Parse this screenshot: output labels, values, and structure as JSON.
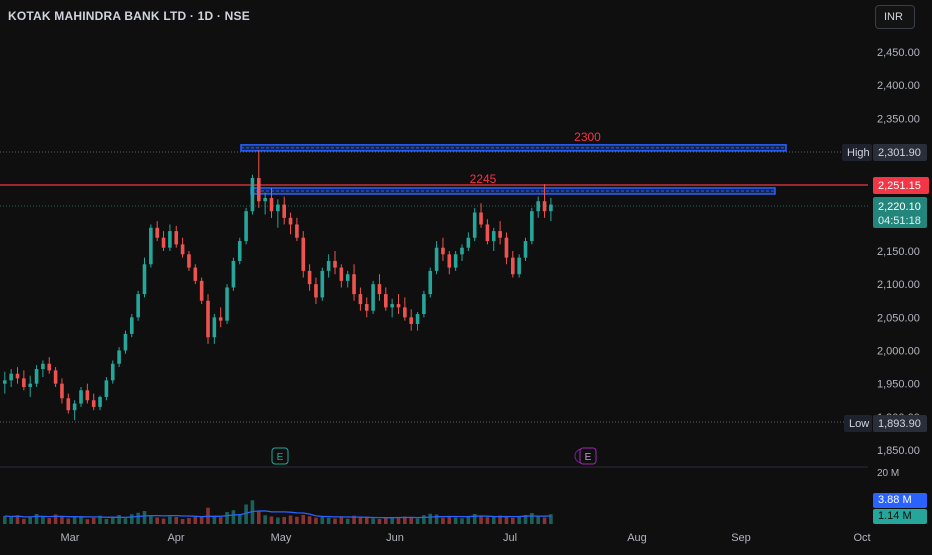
{
  "header": {
    "title": "KOTAK MAHINDRA BANK LTD · 1D · NSE",
    "currency": "INR"
  },
  "colors": {
    "up": "#26a69a",
    "down": "#ef5350",
    "zone": "#2962ff",
    "price_line": "#f23645",
    "ma": "#2962ff"
  },
  "y_axis": {
    "ticks": [
      "2,450.00",
      "2,400.00",
      "2,350.00",
      "2,300.00",
      "2,250.00",
      "2,200.00",
      "2,150.00",
      "2,100.00",
      "2,050.00",
      "2,000.00",
      "1,950.00",
      "1,900.00",
      "1,850.00"
    ],
    "range": [
      1830,
      2480
    ]
  },
  "x_axis": {
    "labels": [
      "Mar",
      "Apr",
      "May",
      "Jun",
      "Jul",
      "Aug",
      "Sep",
      "Oct"
    ]
  },
  "price_tags": {
    "high_label": "High",
    "high_value": "2,301.90",
    "current_value": "2,251.15",
    "last_value": "2,220.10",
    "countdown": "04:51:18",
    "low_label": "Low",
    "low_value": "1,893.90"
  },
  "zones": [
    {
      "label": "2300",
      "low": 2301,
      "high": 2310
    },
    {
      "label": "2245",
      "low": 2236,
      "high": 2245
    }
  ],
  "event_markers": [
    "E",
    "E"
  ],
  "volume": {
    "top_label": "20 M",
    "tag1": "3.88 M",
    "tag2": "1.14 M"
  },
  "chart_data": {
    "type": "candlestick",
    "title": "KOTAK MAHINDRA BANK LTD · 1D · NSE",
    "x_labels": [
      "Mar",
      "Apr",
      "May",
      "Jun",
      "Jul",
      "Aug",
      "Sep",
      "Oct"
    ],
    "ylim": [
      1830,
      2480
    ],
    "ohlc": [
      [
        1950,
        1968,
        1935,
        1955
      ],
      [
        1955,
        1972,
        1945,
        1965
      ],
      [
        1965,
        1975,
        1950,
        1958
      ],
      [
        1958,
        1970,
        1940,
        1945
      ],
      [
        1945,
        1962,
        1930,
        1950
      ],
      [
        1950,
        1978,
        1945,
        1972
      ],
      [
        1972,
        1985,
        1960,
        1980
      ],
      [
        1980,
        1990,
        1965,
        1970
      ],
      [
        1970,
        1975,
        1945,
        1950
      ],
      [
        1950,
        1958,
        1920,
        1928
      ],
      [
        1928,
        1935,
        1905,
        1910
      ],
      [
        1910,
        1925,
        1895,
        1920
      ],
      [
        1920,
        1945,
        1915,
        1940
      ],
      [
        1940,
        1950,
        1920,
        1925
      ],
      [
        1925,
        1935,
        1910,
        1915
      ],
      [
        1915,
        1932,
        1910,
        1930
      ],
      [
        1930,
        1960,
        1925,
        1955
      ],
      [
        1955,
        1985,
        1950,
        1980
      ],
      [
        1980,
        2005,
        1975,
        2000
      ],
      [
        2000,
        2030,
        1995,
        2025
      ],
      [
        2025,
        2055,
        2020,
        2050
      ],
      [
        2050,
        2090,
        2045,
        2085
      ],
      [
        2085,
        2140,
        2080,
        2130
      ],
      [
        2130,
        2190,
        2125,
        2185
      ],
      [
        2185,
        2195,
        2165,
        2170
      ],
      [
        2170,
        2180,
        2150,
        2155
      ],
      [
        2155,
        2190,
        2150,
        2180
      ],
      [
        2180,
        2188,
        2155,
        2160
      ],
      [
        2160,
        2170,
        2140,
        2145
      ],
      [
        2145,
        2150,
        2120,
        2125
      ],
      [
        2125,
        2130,
        2100,
        2105
      ],
      [
        2105,
        2110,
        2070,
        2075
      ],
      [
        2075,
        2085,
        2010,
        2020
      ],
      [
        2020,
        2055,
        2010,
        2050
      ],
      [
        2050,
        2065,
        2035,
        2045
      ],
      [
        2045,
        2100,
        2040,
        2095
      ],
      [
        2095,
        2140,
        2090,
        2135
      ],
      [
        2135,
        2170,
        2130,
        2165
      ],
      [
        2165,
        2215,
        2160,
        2210
      ],
      [
        2210,
        2265,
        2205,
        2260
      ],
      [
        2260,
        2302,
        2215,
        2225
      ],
      [
        2225,
        2238,
        2205,
        2230
      ],
      [
        2230,
        2245,
        2200,
        2210
      ],
      [
        2210,
        2228,
        2185,
        2220
      ],
      [
        2220,
        2232,
        2190,
        2200
      ],
      [
        2200,
        2208,
        2175,
        2190
      ],
      [
        2190,
        2200,
        2165,
        2170
      ],
      [
        2170,
        2180,
        2110,
        2120
      ],
      [
        2120,
        2130,
        2090,
        2100
      ],
      [
        2100,
        2110,
        2070,
        2080
      ],
      [
        2080,
        2125,
        2075,
        2120
      ],
      [
        2120,
        2145,
        2110,
        2135
      ],
      [
        2135,
        2150,
        2115,
        2125
      ],
      [
        2125,
        2130,
        2095,
        2105
      ],
      [
        2105,
        2120,
        2095,
        2115
      ],
      [
        2115,
        2130,
        2075,
        2085
      ],
      [
        2085,
        2095,
        2060,
        2070
      ],
      [
        2070,
        2080,
        2050,
        2060
      ],
      [
        2060,
        2105,
        2055,
        2100
      ],
      [
        2100,
        2115,
        2075,
        2085
      ],
      [
        2085,
        2095,
        2060,
        2065
      ],
      [
        2065,
        2078,
        2050,
        2070
      ],
      [
        2070,
        2085,
        2055,
        2065
      ],
      [
        2065,
        2080,
        2045,
        2050
      ],
      [
        2050,
        2062,
        2030,
        2040
      ],
      [
        2040,
        2058,
        2030,
        2055
      ],
      [
        2055,
        2090,
        2050,
        2085
      ],
      [
        2085,
        2125,
        2080,
        2120
      ],
      [
        2120,
        2165,
        2115,
        2155
      ],
      [
        2155,
        2170,
        2135,
        2145
      ],
      [
        2145,
        2150,
        2115,
        2125
      ],
      [
        2125,
        2150,
        2120,
        2145
      ],
      [
        2145,
        2160,
        2135,
        2155
      ],
      [
        2155,
        2178,
        2150,
        2170
      ],
      [
        2170,
        2215,
        2165,
        2208
      ],
      [
        2208,
        2222,
        2185,
        2190
      ],
      [
        2190,
        2198,
        2160,
        2165
      ],
      [
        2165,
        2185,
        2150,
        2180
      ],
      [
        2180,
        2195,
        2160,
        2170
      ],
      [
        2170,
        2178,
        2130,
        2140
      ],
      [
        2140,
        2150,
        2110,
        2115
      ],
      [
        2115,
        2145,
        2110,
        2140
      ],
      [
        2140,
        2170,
        2135,
        2165
      ],
      [
        2165,
        2215,
        2160,
        2210
      ],
      [
        2210,
        2232,
        2200,
        2225
      ],
      [
        2225,
        2251,
        2200,
        2210
      ],
      [
        2210,
        2230,
        2195,
        2220
      ]
    ],
    "volume_m": [
      3.2,
      2.8,
      3.5,
      2.1,
      2.6,
      4.0,
      3.0,
      2.4,
      3.8,
      2.9,
      2.2,
      2.7,
      3.1,
      1.9,
      2.5,
      3.3,
      2.0,
      2.8,
      3.6,
      2.3,
      3.9,
      4.5,
      5.2,
      3.4,
      2.6,
      2.2,
      3.0,
      2.8,
      2.0,
      2.4,
      2.9,
      3.1,
      6.5,
      3.2,
      2.7,
      4.8,
      5.5,
      4.0,
      7.8,
      9.5,
      5.0,
      3.5,
      3.0,
      2.6,
      2.8,
      3.4,
      2.9,
      3.6,
      3.1,
      2.5,
      3.0,
      2.4,
      2.2,
      2.7,
      2.1,
      3.3,
      2.6,
      2.9,
      2.3,
      2.0,
      2.7,
      2.4,
      2.8,
      3.0,
      2.6,
      2.2,
      3.5,
      4.1,
      3.8,
      2.5,
      2.9,
      2.6,
      2.3,
      3.2,
      4.0,
      3.1,
      2.7,
      2.9,
      3.4,
      3.0,
      2.5,
      2.8,
      3.6,
      4.4,
      3.2,
      2.6,
      3.88
    ],
    "ma_level_m": 1.14
  }
}
